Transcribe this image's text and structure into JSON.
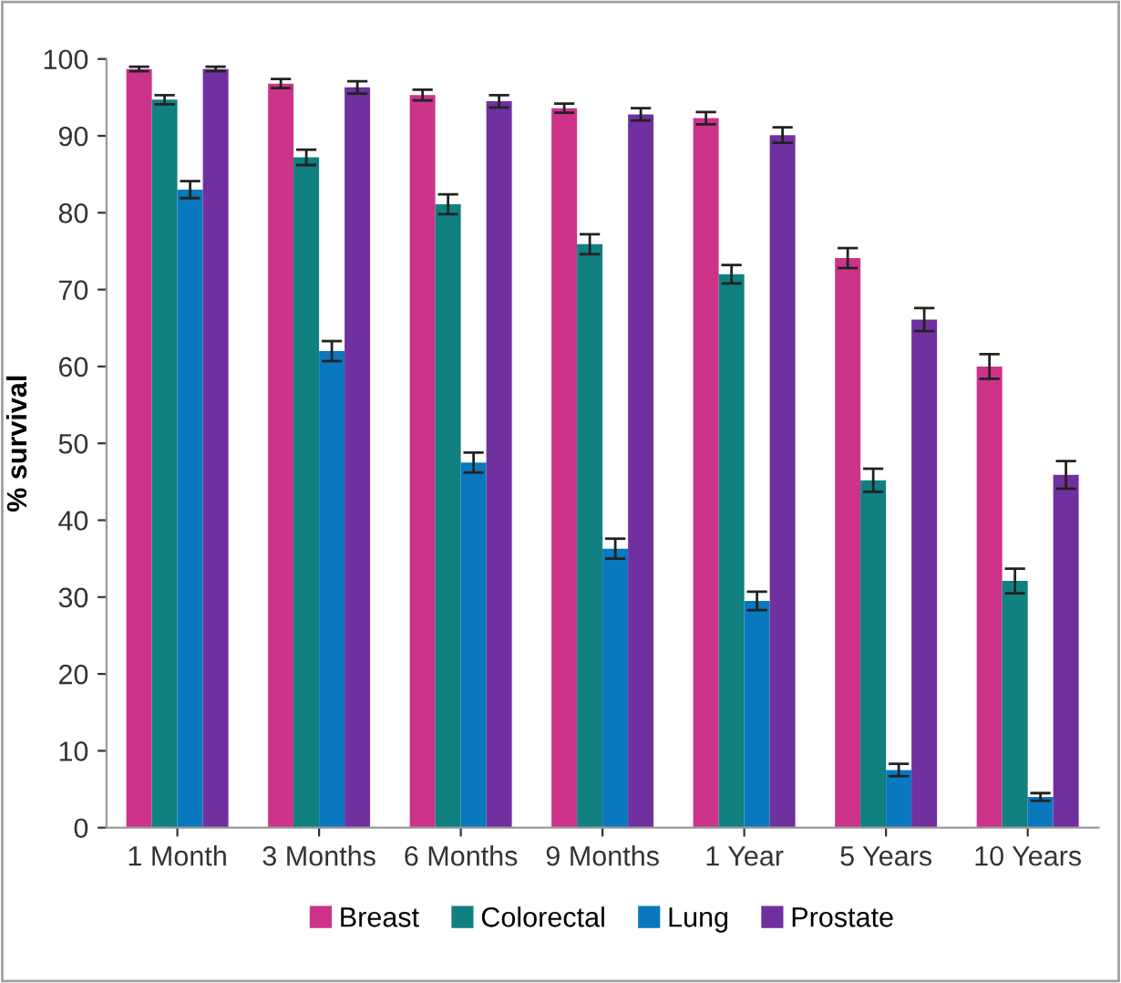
{
  "chart_data": {
    "type": "bar",
    "ylabel": "% survival",
    "categories": [
      "1 Month",
      "3 Months",
      "6 Months",
      "9 Months",
      "1 Year",
      "5 Years",
      "10 Years"
    ],
    "series": [
      {
        "name": "Breast",
        "color": "#cc3388",
        "values": [
          98.7,
          96.8,
          95.3,
          93.6,
          92.3,
          74.1,
          60.0
        ],
        "errors": [
          0.3,
          0.6,
          0.7,
          0.6,
          0.8,
          1.3,
          1.6
        ]
      },
      {
        "name": "Colorectal",
        "color": "#108080",
        "values": [
          94.7,
          87.2,
          81.1,
          75.9,
          72.0,
          45.2,
          32.1
        ],
        "errors": [
          0.6,
          1.0,
          1.3,
          1.3,
          1.2,
          1.5,
          1.6
        ]
      },
      {
        "name": "Lung",
        "color": "#0a78be",
        "values": [
          83.0,
          62.0,
          47.5,
          36.3,
          29.5,
          7.5,
          4.0
        ],
        "errors": [
          1.1,
          1.3,
          1.3,
          1.3,
          1.2,
          0.8,
          0.5
        ]
      },
      {
        "name": "Prostate",
        "color": "#7030a0",
        "values": [
          98.7,
          96.3,
          94.5,
          92.8,
          90.1,
          66.1,
          45.9
        ],
        "errors": [
          0.3,
          0.8,
          0.8,
          0.8,
          1.0,
          1.5,
          1.8
        ]
      }
    ],
    "ylim": [
      0,
      100
    ],
    "yticks": [
      0,
      10,
      20,
      30,
      40,
      50,
      60,
      70,
      80,
      90,
      100
    ],
    "grid": false,
    "legend": "bottom"
  }
}
